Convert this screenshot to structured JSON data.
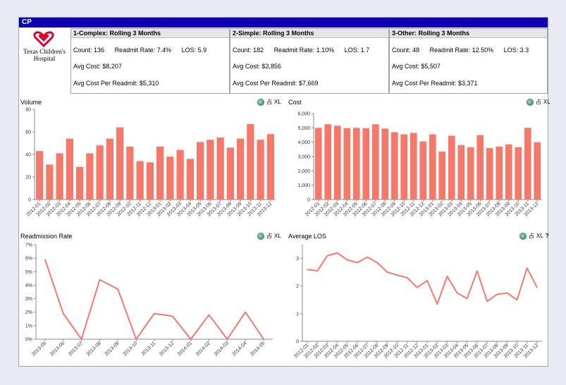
{
  "window": {
    "title": "CP"
  },
  "logo": {
    "line1": "Texas Children's",
    "line2": "Hospital",
    "mark": "heart-logo-icon"
  },
  "kpis": [
    {
      "header": "1-Complex: Rolling 3 Months",
      "count_label": "Count: 136",
      "readmit_label": "Readmit Rate: 7.4%",
      "los_label": "LOS: 5.9",
      "avg_cost_label": "Avg Cost: $8,207",
      "avg_cost_readmit_label": "Avg Cost Per Readmit: $5,310"
    },
    {
      "header": "2-Simple: Rolling 3 Months",
      "count_label": "Count: 182",
      "readmit_label": "Readmit Rate: 1.10%",
      "los_label": "LOS: 1.7",
      "avg_cost_label": "Avg Cost: $3,856",
      "avg_cost_readmit_label": "Avg Cost Per Readmit: $7,669"
    },
    {
      "header": "3-Other: Rolling 3 Months",
      "count_label": "Count: 48",
      "readmit_label": "Readmit Rate: 12.50%",
      "los_label": "LOS: 3.3",
      "avg_cost_label": "Avg Cost: $5,507",
      "avg_cost_readmit_label": "Avg Cost Per Readmit: $3,371"
    }
  ],
  "toolbar": {
    "clear_label": "占",
    "xl_label": "XL",
    "help_label": "?"
  },
  "colors": {
    "series": "#f4796a",
    "titlebar": "#0f00b4"
  },
  "chart_data": [
    {
      "type": "bar",
      "title": "Volume",
      "categories": [
        "2012-01",
        "2012-02",
        "2012-03",
        "2012-04",
        "2012-05",
        "2012-06",
        "2012-07",
        "2012-08",
        "2012-09",
        "2012-10",
        "2012-11",
        "2012-12",
        "2013-01",
        "2013-02",
        "2013-03",
        "2013-04",
        "2013-05",
        "2013-06",
        "2013-07",
        "2013-08",
        "2013-09",
        "2013-10",
        "2013-11",
        "2013-12"
      ],
      "values": [
        43,
        31,
        41,
        54,
        29,
        41,
        48,
        54,
        64,
        47,
        34,
        33,
        47,
        38,
        44,
        36,
        51,
        53,
        55,
        46,
        54,
        67,
        53,
        58
      ],
      "ylim": [
        0,
        80
      ],
      "yticks": [
        "0",
        "20",
        "40",
        "60",
        "80"
      ],
      "grid": false
    },
    {
      "type": "bar",
      "title": "Cost",
      "categories": [
        "2012-01",
        "2012-02",
        "2012-03",
        "2012-04",
        "2012-05",
        "2012-06",
        "2012-07",
        "2012-08",
        "2012-09",
        "2012-10",
        "2012-11",
        "2012-12",
        "2013-01",
        "2013-02",
        "2013-03",
        "2013-04",
        "2013-05",
        "2013-06",
        "2013-07",
        "2013-08",
        "2013-09",
        "2013-10",
        "2013-11",
        "2013-12"
      ],
      "values": [
        5000,
        5250,
        5150,
        4980,
        5000,
        4980,
        5250,
        4950,
        4700,
        4550,
        4650,
        4050,
        4550,
        3350,
        4450,
        3800,
        3650,
        4500,
        3600,
        3700,
        3850,
        3650,
        5000,
        4000
      ],
      "ylim": [
        0,
        6000
      ],
      "yticks": [
        "0",
        "1,000",
        "2,000",
        "3,000",
        "4,000",
        "5,000",
        "6,000"
      ],
      "grid": false
    },
    {
      "type": "line",
      "title": "Readmission Rate",
      "categories": [
        "2013-05",
        "2013-06",
        "2013-07",
        "2013-08",
        "2013-09",
        "2013-10",
        "2013-11",
        "2013-12",
        "2014-01",
        "2014-02",
        "2014-03",
        "2014-04",
        "2014-05"
      ],
      "values": [
        5.9,
        1.9,
        0.0,
        4.4,
        3.7,
        0.0,
        1.9,
        1.7,
        0.0,
        1.8,
        0.0,
        2.0,
        0.0
      ],
      "ylim": [
        0,
        7
      ],
      "yticks": [
        "0%",
        "1%",
        "2%",
        "3%",
        "4%",
        "5%",
        "6%",
        "7%"
      ],
      "grid": false
    },
    {
      "type": "line",
      "title": "Average LOS",
      "categories": [
        "2012-01",
        "2012-02",
        "2012-03",
        "2012-04",
        "2012-05",
        "2012-06",
        "2012-07",
        "2012-08",
        "2012-09",
        "2012-10",
        "2012-11",
        "2012-12",
        "2013-01",
        "2013-02",
        "2013-03",
        "2013-04",
        "2013-05",
        "2013-06",
        "2013-07",
        "2013-08",
        "2013-09",
        "2013-10",
        "2013-11",
        "2013-12"
      ],
      "values": [
        2.6,
        2.55,
        3.1,
        3.2,
        2.95,
        2.85,
        3.05,
        2.85,
        2.5,
        2.4,
        2.3,
        1.95,
        2.2,
        1.35,
        2.35,
        1.75,
        1.55,
        2.55,
        1.45,
        1.7,
        1.75,
        1.5,
        2.65,
        1.95
      ],
      "ylim": [
        0,
        3.5
      ],
      "yticks": [
        "0",
        "1",
        "2",
        "3"
      ],
      "grid": false
    }
  ]
}
